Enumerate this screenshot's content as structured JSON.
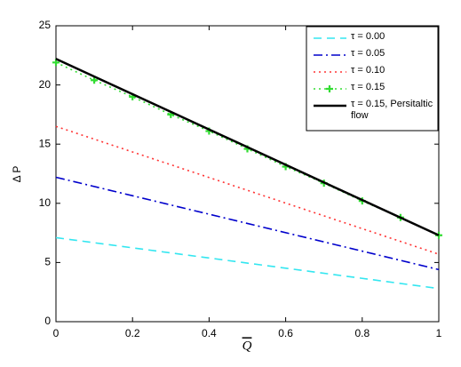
{
  "chart_data": {
    "type": "line",
    "xlabel": "Q",
    "ylabel": "Δ P",
    "xlim": [
      0,
      1
    ],
    "ylim": [
      0,
      25
    ],
    "xticks": [
      0,
      0.2,
      0.4,
      0.6,
      0.8,
      1
    ],
    "yticks": [
      0,
      5,
      10,
      15,
      20,
      25
    ],
    "grid": false,
    "legend": "top-right",
    "series": [
      {
        "name": "τ = 0.00",
        "color": "#33e6f0",
        "linestyle": "--",
        "x": [
          0,
          1
        ],
        "values": [
          7.1,
          2.8
        ]
      },
      {
        "name": "τ = 0.05",
        "color": "#0000cc",
        "linestyle": "-.",
        "x": [
          0,
          1
        ],
        "values": [
          12.2,
          4.4
        ]
      },
      {
        "name": "τ = 0.10",
        "color": "#ff3333",
        "linestyle": ":",
        "x": [
          0,
          1
        ],
        "values": [
          16.5,
          5.7
        ]
      },
      {
        "name": "τ = 0.15",
        "color": "#33dd33",
        "linestyle": ":",
        "marker": "+",
        "x": [
          0,
          0.1,
          0.2,
          0.3,
          0.4,
          0.5,
          0.6,
          0.7,
          0.8,
          0.9,
          1
        ],
        "values": [
          21.9,
          20.4,
          19.0,
          17.5,
          16.1,
          14.6,
          13.1,
          11.7,
          10.2,
          8.8,
          7.3
        ]
      },
      {
        "name": "τ = 0.15, Persitaltic flow",
        "color": "#000000",
        "linestyle": "-",
        "x": [
          0,
          1
        ],
        "values": [
          22.2,
          7.3
        ]
      }
    ]
  }
}
